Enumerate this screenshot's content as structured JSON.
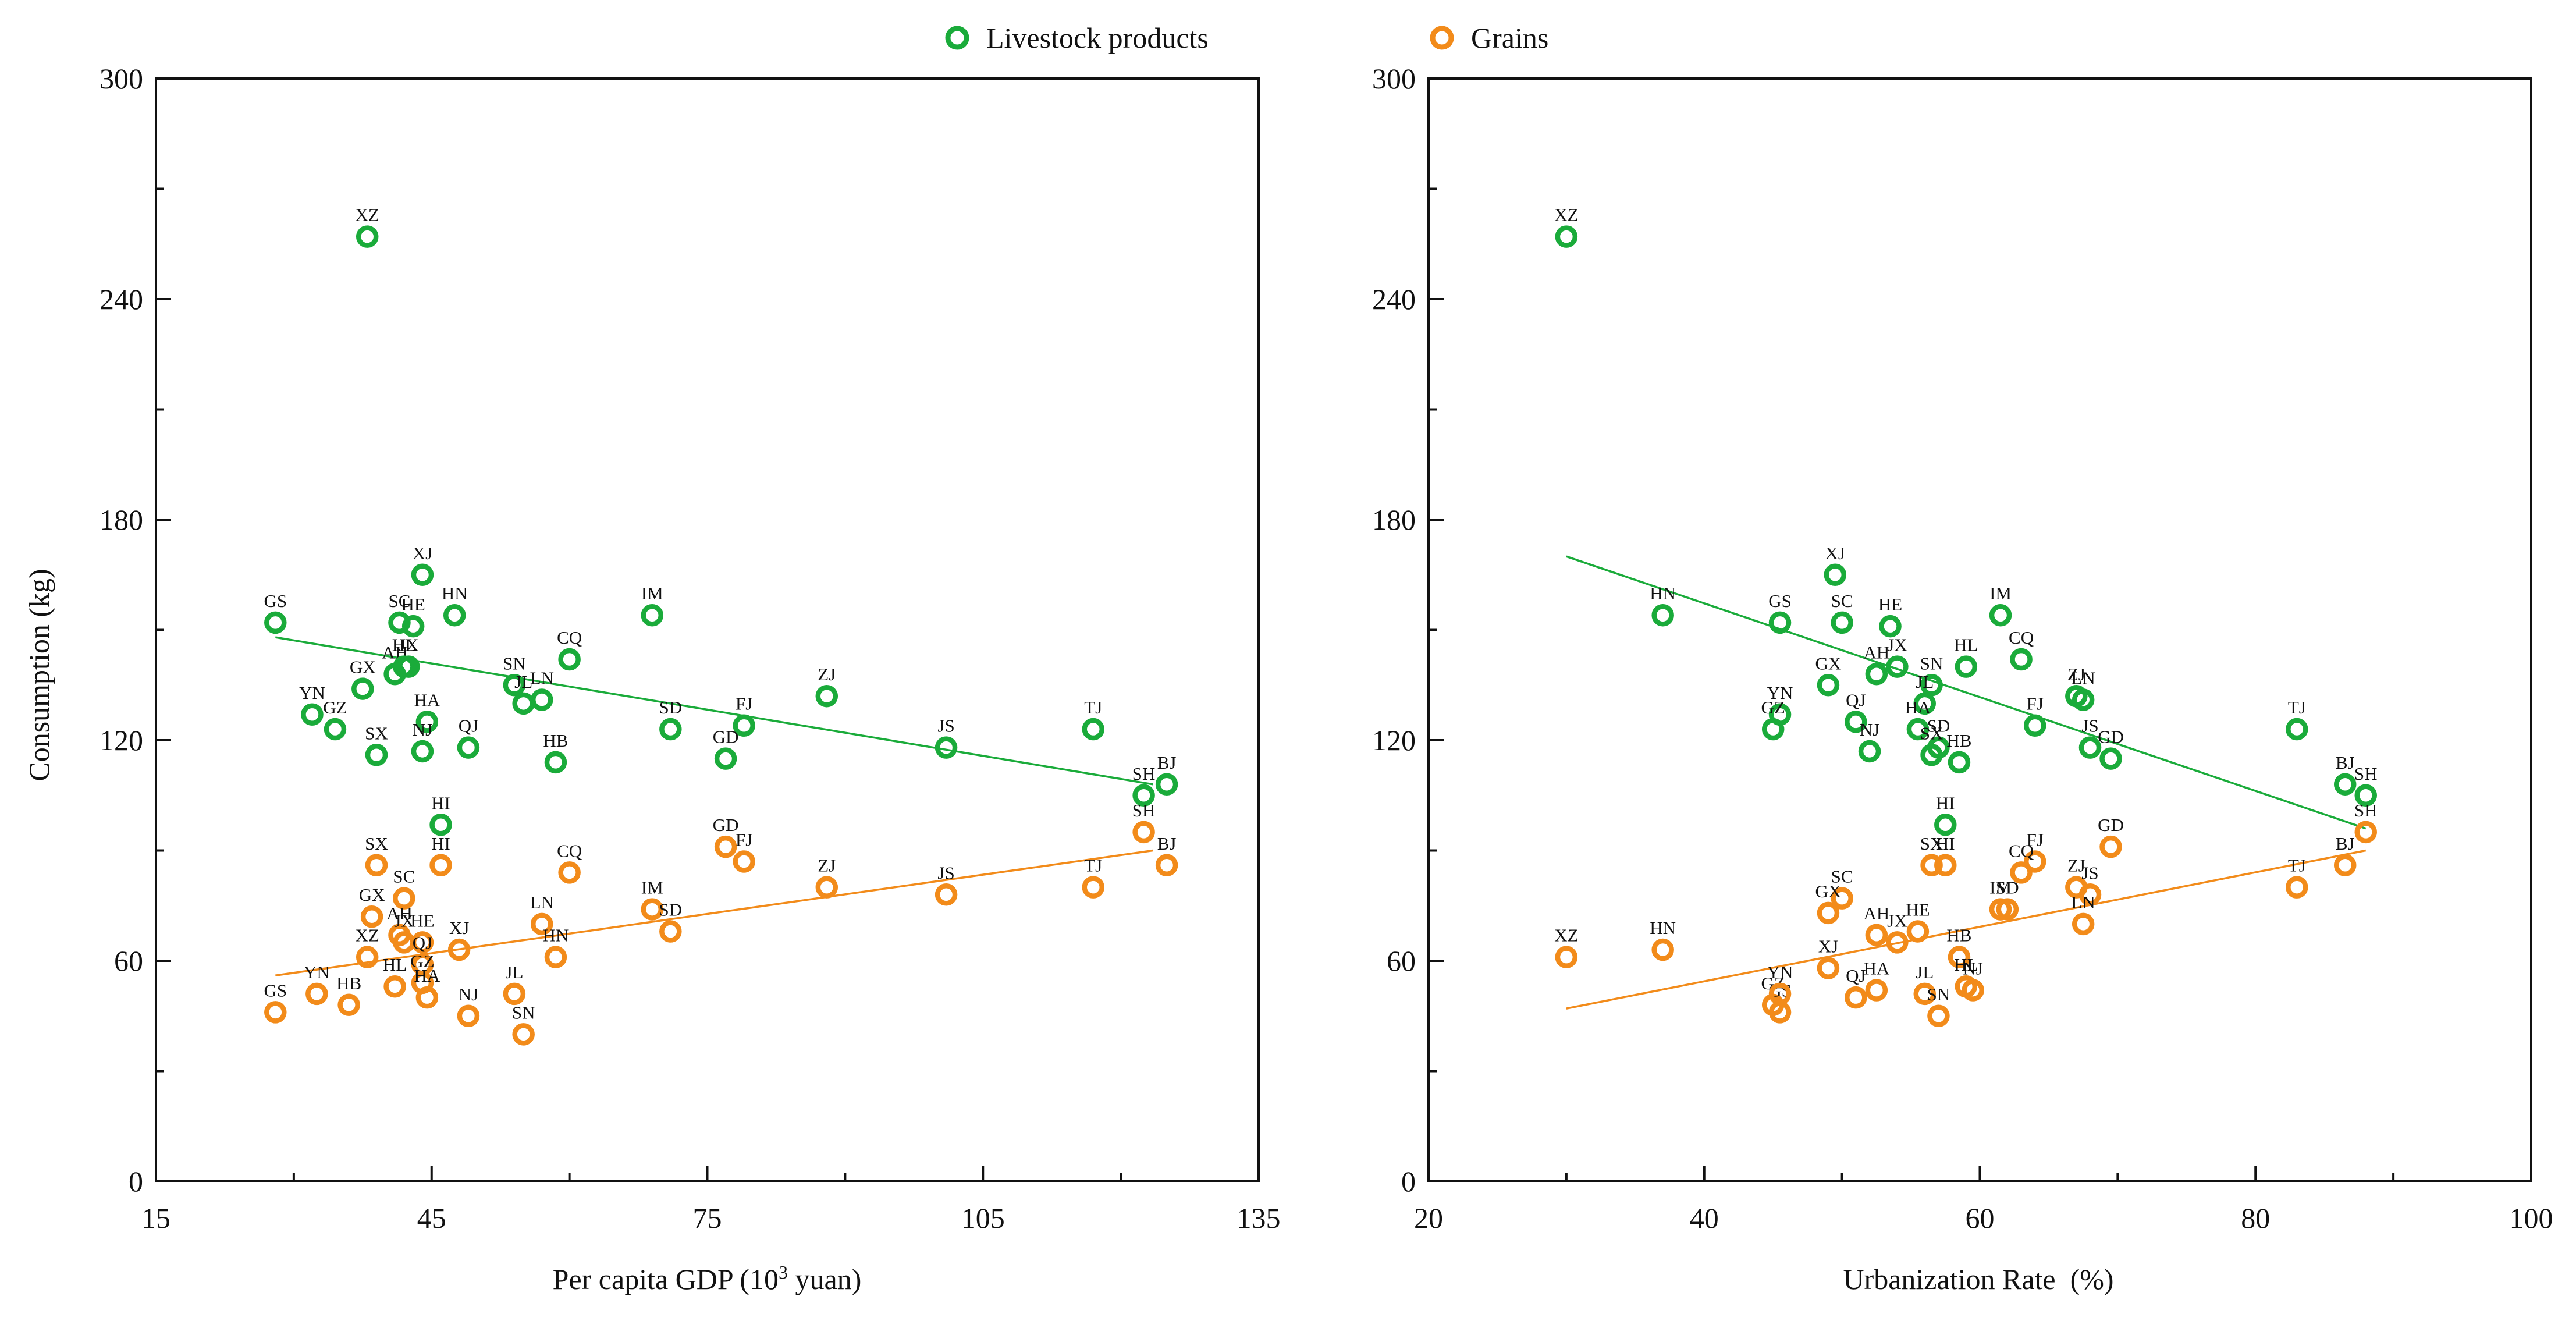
{
  "legend": [
    {
      "label": "Livestock products",
      "color": "#1aab3a"
    },
    {
      "label": "Grains",
      "color": "#f28b1a"
    }
  ],
  "chart_data": [
    {
      "type": "scatter",
      "xlabel": "Per capita GDP (10³ yuan)",
      "xlabel_main": "Per capita GDP (10",
      "xlabel_sup": "3",
      "xlabel_tail": " yuan)",
      "ylabel": "Consumption (kg)",
      "xlim": [
        15,
        135
      ],
      "ylim": [
        0,
        300
      ],
      "xticks": [
        15,
        45,
        75,
        105,
        135
      ],
      "yticks": [
        0,
        60,
        120,
        180,
        240,
        300
      ],
      "series": [
        {
          "name": "Livestock products",
          "color": "#1aab3a",
          "trend": [
            [
              28,
              148
            ],
            [
              123.5,
              108
            ]
          ],
          "points": [
            {
              "label": "GS",
              "x": 28,
              "y": 152
            },
            {
              "label": "SC",
              "x": 41.5,
              "y": 152
            },
            {
              "label": "HE",
              "x": 43,
              "y": 151
            },
            {
              "label": "XJ",
              "x": 44,
              "y": 165
            },
            {
              "label": "HN",
              "x": 47.5,
              "y": 154
            },
            {
              "label": "IM",
              "x": 69,
              "y": 154
            },
            {
              "label": "CQ",
              "x": 60,
              "y": 142
            },
            {
              "label": "AH",
              "x": 41,
              "y": 138
            },
            {
              "label": "HL",
              "x": 42,
              "y": 140
            },
            {
              "label": "JX",
              "x": 42.5,
              "y": 140
            },
            {
              "label": "GX",
              "x": 37.5,
              "y": 134
            },
            {
              "label": "SN",
              "x": 54,
              "y": 135
            },
            {
              "label": "JL",
              "x": 55,
              "y": 130
            },
            {
              "label": "LN",
              "x": 57,
              "y": 131
            },
            {
              "label": "ZJ",
              "x": 88,
              "y": 132
            },
            {
              "label": "YN",
              "x": 32,
              "y": 127
            },
            {
              "label": "GZ",
              "x": 34.5,
              "y": 123
            },
            {
              "label": "HA",
              "x": 44.5,
              "y": 125
            },
            {
              "label": "SD",
              "x": 71,
              "y": 123
            },
            {
              "label": "FJ",
              "x": 79,
              "y": 124
            },
            {
              "label": "TJ",
              "x": 117,
              "y": 123
            },
            {
              "label": "SX",
              "x": 39,
              "y": 116
            },
            {
              "label": "NJ",
              "x": 44,
              "y": 117
            },
            {
              "label": "QJ",
              "x": 49,
              "y": 118
            },
            {
              "label": "HB",
              "x": 58.5,
              "y": 114
            },
            {
              "label": "GD",
              "x": 77,
              "y": 115
            },
            {
              "label": "JS",
              "x": 101,
              "y": 118
            },
            {
              "label": "SH",
              "x": 122.5,
              "y": 105
            },
            {
              "label": "BJ",
              "x": 125,
              "y": 108
            },
            {
              "label": "HI",
              "x": 46,
              "y": 97
            },
            {
              "label": "XZ",
              "x": 38,
              "y": 257
            }
          ]
        },
        {
          "name": "Grains",
          "color": "#f28b1a",
          "trend": [
            [
              28,
              56
            ],
            [
              123.5,
              90
            ]
          ],
          "points": [
            {
              "label": "SX",
              "x": 39,
              "y": 86
            },
            {
              "label": "HI",
              "x": 46,
              "y": 86
            },
            {
              "label": "SC",
              "x": 42,
              "y": 77
            },
            {
              "label": "GX",
              "x": 38.5,
              "y": 72
            },
            {
              "label": "CQ",
              "x": 60,
              "y": 84
            },
            {
              "label": "GD",
              "x": 77,
              "y": 91
            },
            {
              "label": "FJ",
              "x": 79,
              "y": 87
            },
            {
              "label": "SH",
              "x": 122.5,
              "y": 95
            },
            {
              "label": "BJ",
              "x": 125,
              "y": 86
            },
            {
              "label": "TJ",
              "x": 117,
              "y": 80
            },
            {
              "label": "ZJ",
              "x": 88,
              "y": 80
            },
            {
              "label": "JS",
              "x": 101,
              "y": 78
            },
            {
              "label": "AH",
              "x": 41.5,
              "y": 67
            },
            {
              "label": "JX",
              "x": 42,
              "y": 65
            },
            {
              "label": "HE",
              "x": 44,
              "y": 65
            },
            {
              "label": "XJ",
              "x": 48,
              "y": 63
            },
            {
              "label": "LN",
              "x": 57,
              "y": 70
            },
            {
              "label": "HN",
              "x": 58.5,
              "y": 61
            },
            {
              "label": "IM",
              "x": 69,
              "y": 74
            },
            {
              "label": "SD",
              "x": 71,
              "y": 68
            },
            {
              "label": "XZ",
              "x": 38,
              "y": 61
            },
            {
              "label": "QJ",
              "x": 44,
              "y": 59
            },
            {
              "label": "HL",
              "x": 41,
              "y": 53
            },
            {
              "label": "GZ",
              "x": 44,
              "y": 54
            },
            {
              "label": "HA",
              "x": 44.5,
              "y": 50
            },
            {
              "label": "JL",
              "x": 54,
              "y": 51
            },
            {
              "label": "NJ",
              "x": 49,
              "y": 45
            },
            {
              "label": "SN",
              "x": 55,
              "y": 40
            },
            {
              "label": "GS",
              "x": 28,
              "y": 46
            },
            {
              "label": "YN",
              "x": 32.5,
              "y": 51
            },
            {
              "label": "HB",
              "x": 36,
              "y": 48
            }
          ]
        }
      ]
    },
    {
      "type": "scatter",
      "xlabel": "Urbanization Rate  (%)",
      "ylabel": "",
      "xlim": [
        20,
        100
      ],
      "ylim": [
        0,
        300
      ],
      "xticks": [
        20,
        40,
        60,
        80,
        100
      ],
      "yticks": [
        0,
        60,
        120,
        180,
        240,
        300
      ],
      "series": [
        {
          "name": "Livestock products",
          "color": "#1aab3a",
          "trend": [
            [
              30,
              170
            ],
            [
              88,
              96
            ]
          ],
          "points": [
            {
              "label": "XZ",
              "x": 30,
              "y": 257
            },
            {
              "label": "XJ",
              "x": 49.5,
              "y": 165
            },
            {
              "label": "HN",
              "x": 37,
              "y": 154
            },
            {
              "label": "GS",
              "x": 45.5,
              "y": 152
            },
            {
              "label": "SC",
              "x": 50,
              "y": 152
            },
            {
              "label": "HE",
              "x": 53.5,
              "y": 151
            },
            {
              "label": "IM",
              "x": 61.5,
              "y": 154
            },
            {
              "label": "CQ",
              "x": 63,
              "y": 142
            },
            {
              "label": "HL",
              "x": 59,
              "y": 140
            },
            {
              "label": "JX",
              "x": 54,
              "y": 140
            },
            {
              "label": "AH",
              "x": 52.5,
              "y": 138
            },
            {
              "label": "GX",
              "x": 49,
              "y": 135
            },
            {
              "label": "SN",
              "x": 56.5,
              "y": 135
            },
            {
              "label": "JL",
              "x": 56,
              "y": 130
            },
            {
              "label": "ZJ",
              "x": 67,
              "y": 132
            },
            {
              "label": "LN",
              "x": 67.5,
              "y": 131
            },
            {
              "label": "YN",
              "x": 45.5,
              "y": 127
            },
            {
              "label": "GZ",
              "x": 45,
              "y": 123
            },
            {
              "label": "QJ",
              "x": 51,
              "y": 125
            },
            {
              "label": "HA",
              "x": 55.5,
              "y": 123
            },
            {
              "label": "SD",
              "x": 57,
              "y": 118
            },
            {
              "label": "FJ",
              "x": 64,
              "y": 124
            },
            {
              "label": "JS",
              "x": 68,
              "y": 118
            },
            {
              "label": "GD",
              "x": 69.5,
              "y": 115
            },
            {
              "label": "NJ",
              "x": 52,
              "y": 117
            },
            {
              "label": "SX",
              "x": 56.5,
              "y": 116
            },
            {
              "label": "HB",
              "x": 58.5,
              "y": 114
            },
            {
              "label": "TJ",
              "x": 83,
              "y": 123
            },
            {
              "label": "BJ",
              "x": 86.5,
              "y": 108
            },
            {
              "label": "SH",
              "x": 88,
              "y": 105
            },
            {
              "label": "HI",
              "x": 57.5,
              "y": 97
            }
          ]
        },
        {
          "name": "Grains",
          "color": "#f28b1a",
          "trend": [
            [
              30,
              47
            ],
            [
              88,
              90
            ]
          ],
          "points": [
            {
              "label": "GD",
              "x": 69.5,
              "y": 91
            },
            {
              "label": "SH",
              "x": 88,
              "y": 95
            },
            {
              "label": "FJ",
              "x": 64,
              "y": 87
            },
            {
              "label": "SX",
              "x": 56.5,
              "y": 86
            },
            {
              "label": "HI",
              "x": 57.5,
              "y": 86
            },
            {
              "label": "CQ",
              "x": 63,
              "y": 84
            },
            {
              "label": "BJ",
              "x": 86.5,
              "y": 86
            },
            {
              "label": "TJ",
              "x": 83,
              "y": 80
            },
            {
              "label": "ZJ",
              "x": 67,
              "y": 80
            },
            {
              "label": "JS",
              "x": 68,
              "y": 78
            },
            {
              "label": "SC",
              "x": 50,
              "y": 77
            },
            {
              "label": "GX",
              "x": 49,
              "y": 73
            },
            {
              "label": "IM",
              "x": 61.5,
              "y": 74
            },
            {
              "label": "SD",
              "x": 62,
              "y": 74
            },
            {
              "label": "LN",
              "x": 67.5,
              "y": 70
            },
            {
              "label": "AH",
              "x": 52.5,
              "y": 67
            },
            {
              "label": "JX",
              "x": 54,
              "y": 65
            },
            {
              "label": "HE",
              "x": 55.5,
              "y": 68
            },
            {
              "label": "XZ",
              "x": 30,
              "y": 61
            },
            {
              "label": "HN",
              "x": 37,
              "y": 63
            },
            {
              "label": "HB",
              "x": 58.5,
              "y": 61
            },
            {
              "label": "XJ",
              "x": 49,
              "y": 58
            },
            {
              "label": "HL",
              "x": 59,
              "y": 53
            },
            {
              "label": "QJ",
              "x": 51,
              "y": 50
            },
            {
              "label": "HA",
              "x": 52.5,
              "y": 52
            },
            {
              "label": "JL",
              "x": 56,
              "y": 51
            },
            {
              "label": "NJ",
              "x": 59.5,
              "y": 52
            },
            {
              "label": "GZ",
              "x": 45,
              "y": 48
            },
            {
              "label": "GS",
              "x": 45.5,
              "y": 46
            },
            {
              "label": "YN",
              "x": 45.5,
              "y": 51
            },
            {
              "label": "SN",
              "x": 57,
              "y": 45
            }
          ]
        }
      ]
    }
  ]
}
